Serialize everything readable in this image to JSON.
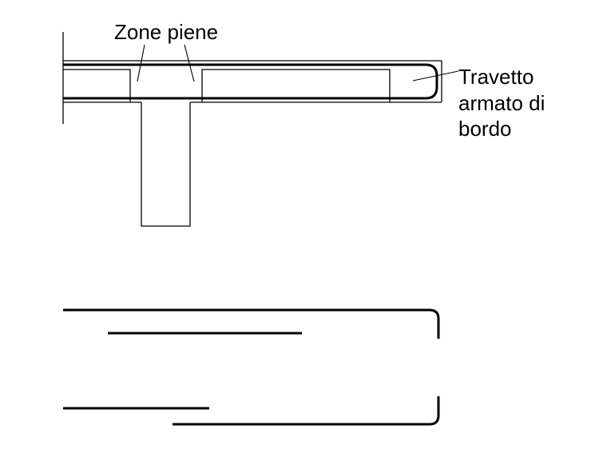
{
  "labels": {
    "zone_piene": "Zone piene",
    "travetto_line1": "Travetto",
    "travetto_line2": "armato di",
    "travetto_line3": "bordo"
  },
  "colors": {
    "line": "#000000",
    "background": "#ffffff"
  }
}
